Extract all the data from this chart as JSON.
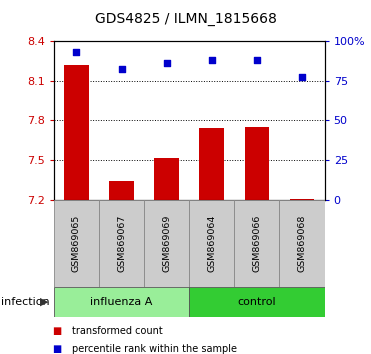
{
  "title": "GDS4825 / ILMN_1815668",
  "categories": [
    "GSM869065",
    "GSM869067",
    "GSM869069",
    "GSM869064",
    "GSM869066",
    "GSM869068"
  ],
  "bar_values": [
    8.22,
    7.34,
    7.52,
    7.74,
    7.75,
    7.21
  ],
  "scatter_values": [
    93,
    82,
    86,
    88,
    88,
    77
  ],
  "bar_bottom": 7.2,
  "ylim_left": [
    7.2,
    8.4
  ],
  "ylim_right": [
    0,
    100
  ],
  "yticks_left": [
    7.2,
    7.5,
    7.8,
    8.1,
    8.4
  ],
  "ytick_labels_left": [
    "7.2",
    "7.5",
    "7.8",
    "8.1",
    "8.4"
  ],
  "yticks_right": [
    0,
    25,
    50,
    75,
    100
  ],
  "ytick_labels_right": [
    "0",
    "25",
    "50",
    "75",
    "100%"
  ],
  "groups": [
    {
      "label": "influenza A",
      "indices": [
        0,
        1,
        2
      ],
      "color": "#99ee99"
    },
    {
      "label": "control",
      "indices": [
        3,
        4,
        5
      ],
      "color": "#33cc33"
    }
  ],
  "group_label": "infection",
  "bar_color": "#cc0000",
  "scatter_color": "#0000cc",
  "legend_items": [
    {
      "label": "transformed count",
      "color": "#cc0000"
    },
    {
      "label": "percentile rank within the sample",
      "color": "#0000cc"
    }
  ],
  "grid_lines": [
    7.5,
    7.8,
    8.1
  ],
  "tick_label_color_left": "#cc0000",
  "tick_label_color_right": "#0000cc",
  "label_box_color": "#cccccc",
  "label_box_edge": "#888888"
}
